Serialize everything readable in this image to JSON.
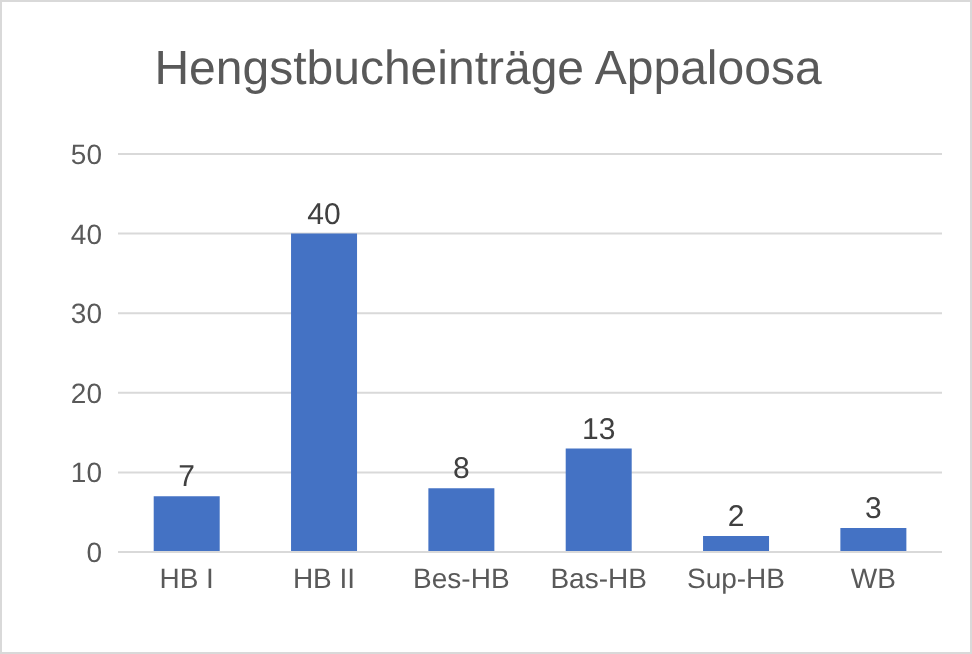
{
  "chart_data": {
    "type": "bar",
    "title": "Hengstbucheinträge Appaloosa",
    "categories": [
      "HB I",
      "HB II",
      "Bes-HB",
      "Bas-HB",
      "Sup-HB",
      "WB"
    ],
    "values": [
      7,
      40,
      8,
      13,
      2,
      3
    ],
    "color": "#4472c4",
    "ylim": [
      0,
      50
    ],
    "yticks": [
      0,
      10,
      20,
      30,
      40,
      50
    ],
    "grid": "y",
    "data_labels": true
  }
}
